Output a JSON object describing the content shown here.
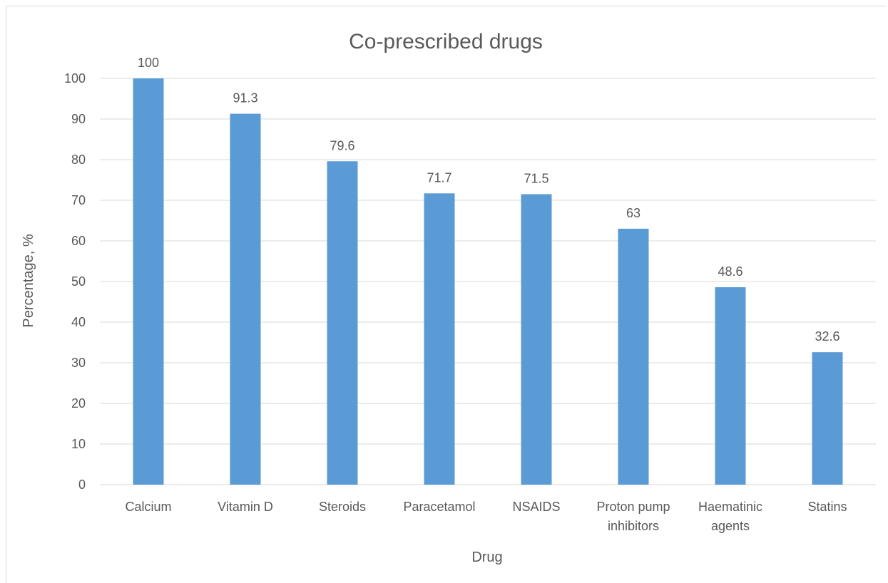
{
  "chart_data": {
    "type": "bar",
    "title": "Co-prescribed drugs",
    "xlabel": "Drug",
    "ylabel": "Percentage, %",
    "ylim": [
      0,
      100
    ],
    "yticks": [
      0,
      10,
      20,
      30,
      40,
      50,
      60,
      70,
      80,
      90,
      100
    ],
    "grid": true,
    "legend": "none",
    "bar_color": "#5b9bd5",
    "categories": [
      [
        "Calcium"
      ],
      [
        "Vitamin D"
      ],
      [
        "Steroids"
      ],
      [
        "Paracetamol"
      ],
      [
        "NSAIDS"
      ],
      [
        "Proton pump",
        "inhibitors"
      ],
      [
        "Haematinic",
        "agents"
      ],
      [
        "Statins"
      ]
    ],
    "values": [
      100,
      91.3,
      79.6,
      71.7,
      71.5,
      63,
      48.6,
      32.6
    ],
    "data_labels": [
      "100",
      "91.3",
      "79.6",
      "71.7",
      "71.5",
      "63",
      "48.6",
      "32.6"
    ]
  }
}
